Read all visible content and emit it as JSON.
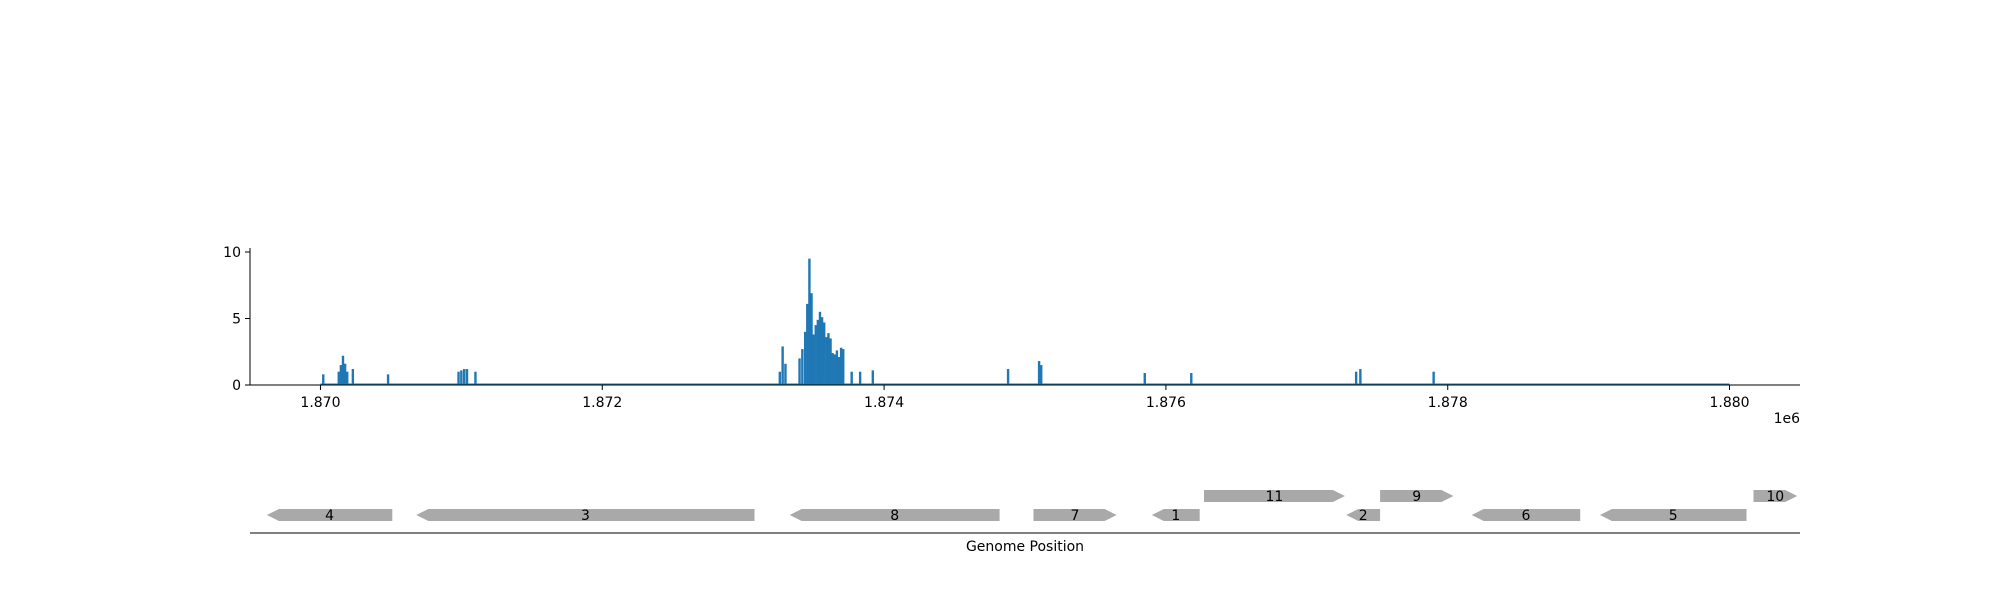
{
  "chart_data": {
    "type": "bar",
    "xlabel": "Genome Position",
    "ylabel": "",
    "x_offset_label": "1e6",
    "xlim": [
      1869500,
      1880500
    ],
    "ylim": [
      0,
      10.3
    ],
    "yticks": [
      {
        "value": 0,
        "label": "0"
      },
      {
        "value": 5,
        "label": "5"
      },
      {
        "value": 10,
        "label": "10"
      }
    ],
    "xticks": [
      {
        "value": 1870000,
        "label": "1.870"
      },
      {
        "value": 1872000,
        "label": "1.872"
      },
      {
        "value": 1874000,
        "label": "1.874"
      },
      {
        "value": 1876000,
        "label": "1.876"
      },
      {
        "value": 1878000,
        "label": "1.878"
      },
      {
        "value": 1880000,
        "label": "1.880"
      }
    ],
    "bar_color": "#1f77b4",
    "baseline_range": [
      1870000,
      1880000
    ],
    "x": [
      1870020,
      1870130,
      1870145,
      1870160,
      1870175,
      1870190,
      1870230,
      1870480,
      1870980,
      1871000,
      1871020,
      1871040,
      1871100,
      1873260,
      1873280,
      1873300,
      1873400,
      1873420,
      1873440,
      1873455,
      1873470,
      1873485,
      1873500,
      1873515,
      1873530,
      1873545,
      1873560,
      1873575,
      1873590,
      1873605,
      1873620,
      1873635,
      1873650,
      1873665,
      1873680,
      1873695,
      1873710,
      1873770,
      1873830,
      1873920,
      1874880,
      1875100,
      1875115,
      1875850,
      1876180,
      1877350,
      1877380,
      1877900
    ],
    "values": [
      0.8,
      1.0,
      1.5,
      2.2,
      1.6,
      1.0,
      1.2,
      0.8,
      1.0,
      1.1,
      1.2,
      1.2,
      1.0,
      1.0,
      2.9,
      1.6,
      2.0,
      2.7,
      4.0,
      6.1,
      9.5,
      6.9,
      3.8,
      4.5,
      4.9,
      5.5,
      5.1,
      4.7,
      3.6,
      3.9,
      3.5,
      2.4,
      2.3,
      2.6,
      2.1,
      2.8,
      2.7,
      1.0,
      1.0,
      1.1,
      1.2,
      1.8,
      1.5,
      0.9,
      0.9,
      1.0,
      1.2,
      1.0
    ],
    "genes": [
      {
        "label": "4",
        "start": 1869620,
        "end": 1870510,
        "strand": "-",
        "row": 0
      },
      {
        "label": "3",
        "start": 1870680,
        "end": 1873080,
        "strand": "-",
        "row": 0
      },
      {
        "label": "8",
        "start": 1873330,
        "end": 1874820,
        "strand": "-",
        "row": 0
      },
      {
        "label": "7",
        "start": 1875060,
        "end": 1875650,
        "strand": "+",
        "row": 0
      },
      {
        "label": "1",
        "start": 1875900,
        "end": 1876240,
        "strand": "-",
        "row": 0
      },
      {
        "label": "11",
        "start": 1876270,
        "end": 1877270,
        "strand": "+",
        "row": 1
      },
      {
        "label": "2",
        "start": 1877280,
        "end": 1877520,
        "strand": "-",
        "row": 0
      },
      {
        "label": "9",
        "start": 1877520,
        "end": 1878040,
        "strand": "+",
        "row": 1
      },
      {
        "label": "6",
        "start": 1878170,
        "end": 1878940,
        "strand": "-",
        "row": 0
      },
      {
        "label": "5",
        "start": 1879080,
        "end": 1880120,
        "strand": "-",
        "row": 0
      },
      {
        "label": "10",
        "start": 1880170,
        "end": 1880480,
        "strand": "+",
        "row": 1
      }
    ],
    "gene_color": "#a9a9a9"
  }
}
